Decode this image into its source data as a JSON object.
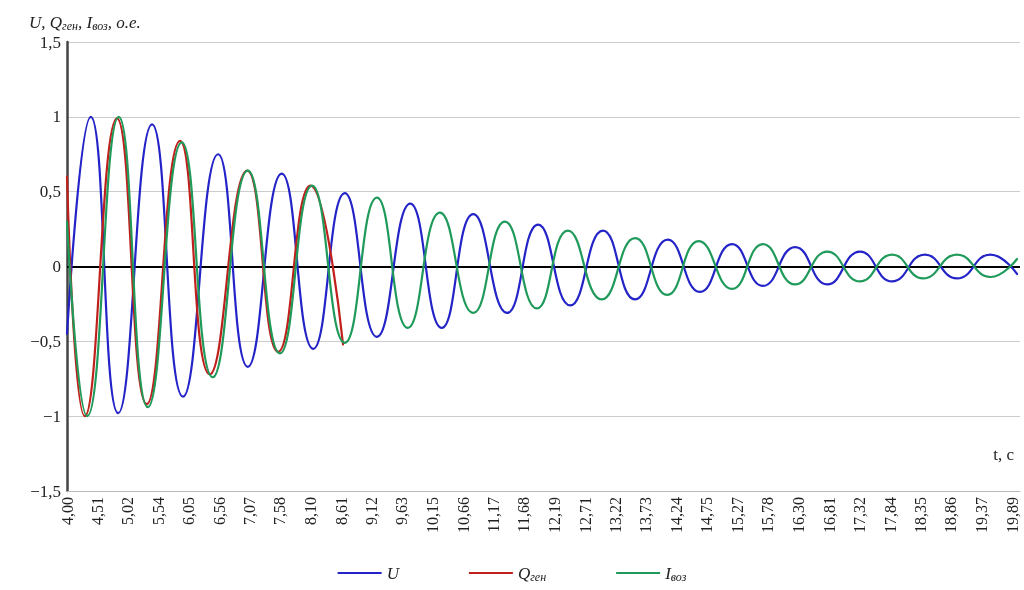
{
  "chart_data": {
    "type": "line",
    "xlabel": "t, c",
    "ylabel": "U, Q$_{ген}$, I$_{воз}$, о.е.",
    "xlim": [
      4,
      20.02
    ],
    "xticks": [
      {
        "value": 4.0,
        "label": "4,00"
      },
      {
        "value": 4.51,
        "label": "4,51"
      },
      {
        "value": 5.02,
        "label": "5,02"
      },
      {
        "value": 5.54,
        "label": "5,54"
      },
      {
        "value": 6.05,
        "label": "6,05"
      },
      {
        "value": 6.56,
        "label": "6,56"
      },
      {
        "value": 7.07,
        "label": "7,07"
      },
      {
        "value": 7.58,
        "label": "7,58"
      },
      {
        "value": 8.1,
        "label": "8,10"
      },
      {
        "value": 8.61,
        "label": "8,61"
      },
      {
        "value": 9.12,
        "label": "9,12"
      },
      {
        "value": 9.63,
        "label": "9,63"
      },
      {
        "value": 10.15,
        "label": "10,15"
      },
      {
        "value": 10.66,
        "label": "10,66"
      },
      {
        "value": 11.17,
        "label": "11,17"
      },
      {
        "value": 11.68,
        "label": "11,68"
      },
      {
        "value": 12.19,
        "label": "12,19"
      },
      {
        "value": 12.71,
        "label": "12,71"
      },
      {
        "value": 13.22,
        "label": "13,22"
      },
      {
        "value": 13.73,
        "label": "13,73"
      },
      {
        "value": 14.24,
        "label": "14,24"
      },
      {
        "value": 14.75,
        "label": "14,75"
      },
      {
        "value": 15.27,
        "label": "15,27"
      },
      {
        "value": 15.78,
        "label": "15,78"
      },
      {
        "value": 16.3,
        "label": "16,30"
      },
      {
        "value": 16.81,
        "label": "16,81"
      },
      {
        "value": 17.32,
        "label": "17,32"
      },
      {
        "value": 17.84,
        "label": "17,84"
      },
      {
        "value": 18.35,
        "label": "18,35"
      },
      {
        "value": 18.86,
        "label": "18,86"
      },
      {
        "value": 19.37,
        "label": "19,37"
      },
      {
        "value": 19.89,
        "label": "19,89"
      }
    ],
    "ylim": [
      -1.5,
      1.5
    ],
    "yticks": [
      {
        "value": -1.5,
        "label": "−1,5"
      },
      {
        "value": -1,
        "label": "−1"
      },
      {
        "value": -0.5,
        "label": "−0,5"
      },
      0,
      {
        "value": 0.5,
        "label": "0,5"
      },
      1,
      {
        "value": 1.5,
        "label": "1,5"
      }
    ],
    "grid": "y",
    "legend": "bottom",
    "marker": "none",
    "line_style": "solid",
    "ref_lines": [
      {
        "axis": "y",
        "value": 0,
        "color": "#000000"
      }
    ],
    "series": [
      {
        "name": "U",
        "color": "#2323c8",
        "x": [
          4.0,
          4.4,
          4.86,
          5.43,
          5.95,
          6.54,
          7.04,
          7.61,
          8.14,
          8.67,
          9.21,
          9.77,
          10.3,
          10.83,
          11.4,
          11.92,
          12.46,
          13.01,
          13.55,
          14.1,
          14.64,
          15.18,
          15.7,
          16.24,
          16.78,
          17.33,
          17.87,
          18.42,
          18.96,
          19.52,
          19.97
        ],
        "values": [
          -0.45,
          1.0,
          -0.98,
          0.95,
          -0.87,
          0.75,
          -0.67,
          0.62,
          -0.55,
          0.49,
          -0.47,
          0.42,
          -0.41,
          0.35,
          -0.31,
          0.28,
          -0.26,
          0.24,
          -0.22,
          0.18,
          -0.17,
          0.15,
          -0.13,
          0.13,
          -0.12,
          0.1,
          -0.1,
          0.08,
          -0.08,
          0.08,
          -0.05
        ]
      },
      {
        "name": "Q$_{ген}$",
        "color": "#c0201c",
        "x": [
          4.0,
          4.3,
          4.84,
          5.34,
          5.9,
          6.4,
          7.03,
          7.55,
          8.09,
          8.64
        ],
        "values": [
          0.6,
          -1.0,
          0.99,
          -0.92,
          0.84,
          -0.72,
          0.64,
          -0.57,
          0.54,
          -0.52
        ]
      },
      {
        "name": "I$_{воз}$",
        "color": "#1f9a5a",
        "x": [
          4.0,
          4.34,
          4.87,
          5.36,
          5.93,
          6.45,
          7.04,
          7.58,
          8.12,
          8.67,
          9.21,
          9.73,
          10.27,
          10.83,
          11.36,
          11.9,
          12.42,
          12.99,
          13.55,
          14.09,
          14.62,
          15.18,
          15.7,
          16.24,
          16.78,
          17.33,
          17.87,
          18.39,
          18.96,
          19.52,
          19.97
        ],
        "values": [
          0.3,
          -1.0,
          1.0,
          -0.94,
          0.83,
          -0.74,
          0.64,
          -0.58,
          0.54,
          -0.51,
          0.46,
          -0.41,
          0.36,
          -0.31,
          0.3,
          -0.28,
          0.24,
          -0.22,
          0.19,
          -0.19,
          0.17,
          -0.15,
          0.15,
          -0.12,
          0.1,
          -0.1,
          0.08,
          -0.08,
          0.08,
          -0.07,
          0.05
        ]
      }
    ]
  }
}
